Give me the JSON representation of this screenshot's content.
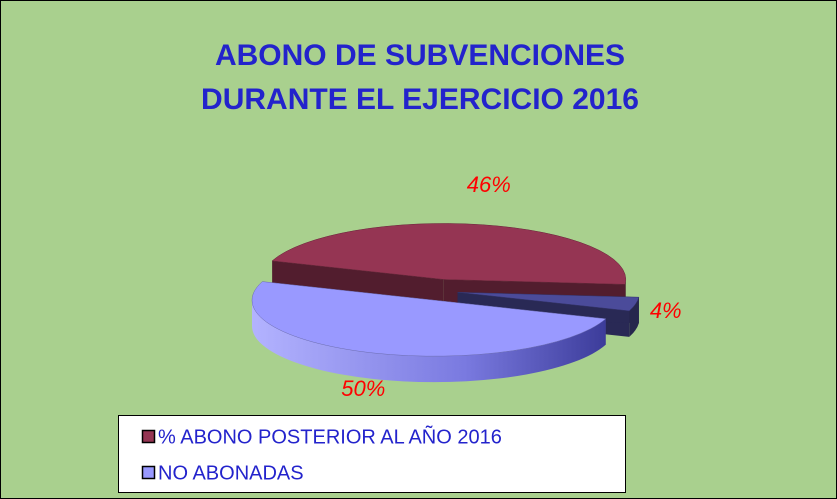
{
  "chart_data": {
    "type": "pie3d",
    "title": "ABONO DE SUBVENCIONES",
    "subtitle": "DURANTE EL EJERCICIO 2016",
    "categories": [
      "% ABONO POSTERIOR AL AÑO 2016",
      "NO ABONADAS",
      null
    ],
    "values": [
      46,
      50,
      4
    ],
    "value_labels": [
      "46%",
      "50%",
      "4%"
    ],
    "colors": [
      "#953553",
      "#9999ff",
      "#4b4b9a"
    ],
    "legend": "bottom"
  }
}
